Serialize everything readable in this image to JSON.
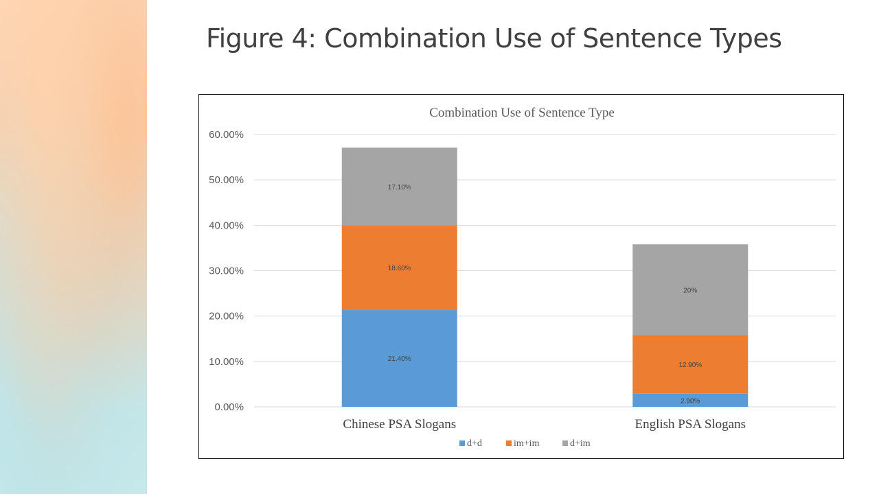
{
  "slide": {
    "title": "Figure 4: Combination Use of Sentence Types"
  },
  "chart_data": {
    "type": "bar",
    "stacked": true,
    "title": "Combination Use of Sentence Type",
    "categories": [
      "Chinese PSA Slogans",
      "English PSA Slogans"
    ],
    "series": [
      {
        "name": "d+d",
        "values": [
          21.4,
          2.9
        ],
        "labels": [
          "21.40%",
          "2.90%"
        ],
        "color": "#5b9bd5"
      },
      {
        "name": "im+im",
        "values": [
          18.6,
          12.9
        ],
        "labels": [
          "18.60%",
          "12.90%"
        ],
        "color": "#ed7d31"
      },
      {
        "name": "d+im",
        "values": [
          17.1,
          20
        ],
        "labels": [
          "17.10%",
          "20%"
        ],
        "color": "#a5a5a5"
      }
    ],
    "ylim": [
      0,
      60
    ],
    "yticks": [
      0,
      10,
      20,
      30,
      40,
      50,
      60
    ],
    "ytick_labels": [
      "0.00%",
      "10.00%",
      "20.00%",
      "30.00%",
      "40.00%",
      "50.00%",
      "60.00%"
    ],
    "xlabel": "",
    "ylabel": "",
    "grid": true,
    "legend_position": "bottom"
  }
}
